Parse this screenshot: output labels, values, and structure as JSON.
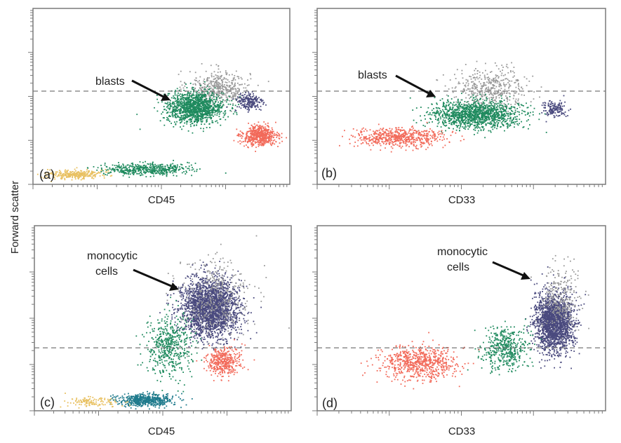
{
  "figure": {
    "y_axis_label": "Forward scatter"
  },
  "colors": {
    "blasts_green": "#1f8a5e",
    "gray": "#9a9a9a",
    "navy": "#4a4a7e",
    "red": "#f26a5a",
    "yellow": "#e8c060",
    "teal": "#1e7a8c",
    "dashed_line": "#777777"
  },
  "chart_data": [
    {
      "type": "scatter",
      "panel_letter": "(a)",
      "xlabel": "CD45",
      "annotation": "blasts",
      "xlim": [
        0,
        1
      ],
      "ylim": [
        0,
        1
      ],
      "scale": "log",
      "threshold_y": 0.53,
      "series": [
        {
          "color": "gray",
          "center": [
            0.72,
            0.55
          ],
          "spread": [
            0.11,
            0.09
          ],
          "n": 450
        },
        {
          "color": "blasts_green",
          "center": [
            0.63,
            0.44
          ],
          "spread": [
            0.1,
            0.08
          ],
          "n": 1300
        },
        {
          "color": "navy",
          "center": [
            0.84,
            0.47
          ],
          "spread": [
            0.05,
            0.05
          ],
          "n": 200
        },
        {
          "color": "red",
          "center": [
            0.88,
            0.28
          ],
          "spread": [
            0.06,
            0.05
          ],
          "n": 550
        },
        {
          "color": "yellow",
          "center": [
            0.16,
            0.06
          ],
          "spread": [
            0.1,
            0.025
          ],
          "n": 280
        },
        {
          "color": "blasts_green",
          "center": [
            0.44,
            0.09
          ],
          "spread": [
            0.15,
            0.03
          ],
          "n": 480
        }
      ]
    },
    {
      "type": "scatter",
      "panel_letter": "(b)",
      "xlabel": "CD33",
      "annotation": "blasts",
      "xlim": [
        0,
        1
      ],
      "ylim": [
        0,
        1
      ],
      "scale": "log",
      "threshold_y": 0.53,
      "series": [
        {
          "color": "gray",
          "center": [
            0.6,
            0.55
          ],
          "spread": [
            0.12,
            0.1
          ],
          "n": 450
        },
        {
          "color": "blasts_green",
          "center": [
            0.55,
            0.4
          ],
          "spread": [
            0.14,
            0.07
          ],
          "n": 1300
        },
        {
          "color": "red",
          "center": [
            0.28,
            0.27
          ],
          "spread": [
            0.14,
            0.05
          ],
          "n": 600
        },
        {
          "color": "navy",
          "center": [
            0.82,
            0.43
          ],
          "spread": [
            0.04,
            0.04
          ],
          "n": 150
        }
      ]
    },
    {
      "type": "scatter",
      "panel_letter": "(c)",
      "xlabel": "CD45",
      "annotation": "monocytic cells",
      "xlim": [
        0,
        1
      ],
      "ylim": [
        0,
        1
      ],
      "scale": "log",
      "threshold_y": 0.34,
      "series": [
        {
          "color": "navy",
          "center": [
            0.68,
            0.56
          ],
          "spread": [
            0.1,
            0.14
          ],
          "n": 2400
        },
        {
          "color": "gray",
          "center": [
            0.7,
            0.62
          ],
          "spread": [
            0.14,
            0.2
          ],
          "n": 350
        },
        {
          "color": "blasts_green",
          "center": [
            0.52,
            0.35
          ],
          "spread": [
            0.08,
            0.16
          ],
          "n": 500
        },
        {
          "color": "red",
          "center": [
            0.73,
            0.27
          ],
          "spread": [
            0.06,
            0.07
          ],
          "n": 400
        },
        {
          "color": "teal",
          "center": [
            0.43,
            0.06
          ],
          "spread": [
            0.1,
            0.03
          ],
          "n": 500
        },
        {
          "color": "yellow",
          "center": [
            0.22,
            0.05
          ],
          "spread": [
            0.09,
            0.025
          ],
          "n": 120
        }
      ]
    },
    {
      "type": "scatter",
      "panel_letter": "(d)",
      "xlabel": "CD33",
      "annotation": "monocytic cells",
      "xlim": [
        0,
        1
      ],
      "ylim": [
        0,
        1
      ],
      "scale": "log",
      "threshold_y": 0.34,
      "series": [
        {
          "color": "navy",
          "center": [
            0.82,
            0.48
          ],
          "spread": [
            0.06,
            0.14
          ],
          "n": 2000
        },
        {
          "color": "gray",
          "center": [
            0.84,
            0.62
          ],
          "spread": [
            0.06,
            0.16
          ],
          "n": 250
        },
        {
          "color": "blasts_green",
          "center": [
            0.65,
            0.34
          ],
          "spread": [
            0.07,
            0.1
          ],
          "n": 450
        },
        {
          "color": "red",
          "center": [
            0.35,
            0.26
          ],
          "spread": [
            0.12,
            0.08
          ],
          "n": 700
        }
      ]
    }
  ]
}
